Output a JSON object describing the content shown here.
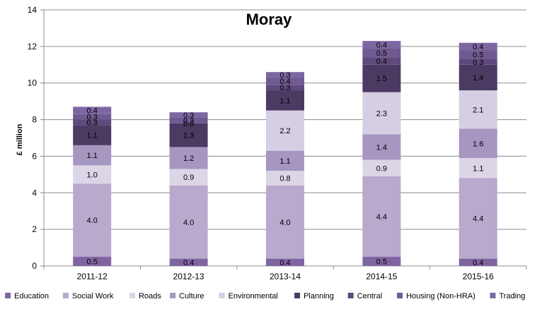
{
  "chart_data": {
    "type": "bar",
    "stacked": true,
    "title": "Moray",
    "xlabel": "",
    "ylabel": "£ million",
    "ylim": [
      0,
      14
    ],
    "yticks": [
      0,
      2,
      4,
      6,
      8,
      10,
      12,
      14
    ],
    "grid": true,
    "legend_position": "bottom",
    "categories": [
      "2011-12",
      "2012-13",
      "2013-14",
      "2014-15",
      "2015-16"
    ],
    "series": [
      {
        "name": "Education",
        "color": "#8064a2",
        "values": [
          0.5,
          0.4,
          0.4,
          0.5,
          0.4
        ],
        "labels": [
          "0.5",
          "0.4",
          "0.4",
          "0.5",
          "0.4"
        ]
      },
      {
        "name": "Social Work",
        "color": "#b7aacd",
        "values": [
          4.0,
          4.0,
          4.0,
          4.4,
          4.4
        ],
        "labels": [
          "4.0",
          "4.0",
          "4.0",
          "4.4",
          "4.4"
        ]
      },
      {
        "name": "Roads",
        "color": "#dcd5e7",
        "values": [
          1.0,
          0.9,
          0.8,
          0.9,
          1.1
        ],
        "labels": [
          "1.0",
          "0.9",
          "0.8",
          "0.9",
          "1.1"
        ]
      },
      {
        "name": "Culture",
        "color": "#a597c0",
        "values": [
          1.1,
          1.2,
          1.1,
          1.4,
          1.6
        ],
        "labels": [
          "1.1",
          "1.2",
          "1.1",
          "1.4",
          "1.6"
        ]
      },
      {
        "name": "Environmental",
        "color": "#d6cee2",
        "values": [
          0.0,
          0.0,
          2.2,
          2.3,
          2.1
        ],
        "labels": [
          "",
          "",
          "2.2",
          "2.3",
          "2.1"
        ]
      },
      {
        "name": "Planning",
        "color": "#4b3b63",
        "values": [
          1.1,
          1.3,
          1.1,
          1.5,
          1.4
        ],
        "labels": [
          "1.1",
          "1.3",
          "1.1",
          "1.5",
          "1.4"
        ]
      },
      {
        "name": "Central",
        "color": "#5e4a7c",
        "values": [
          0.3,
          0.0,
          0.3,
          0.4,
          0.3
        ],
        "labels": [
          "0.3",
          "0.0",
          "0.3",
          "0.4",
          "0.3"
        ]
      },
      {
        "name": "Housing (Non-HRA)",
        "color": "#6f5a91",
        "values": [
          0.3,
          0.3,
          0.4,
          0.5,
          0.5
        ],
        "labels": [
          "0.3",
          "0.3",
          "0.4",
          "0.5",
          "0.5"
        ]
      },
      {
        "name": "Trading",
        "color": "#7d67a3",
        "values": [
          0.4,
          0.3,
          0.3,
          0.4,
          0.4
        ],
        "labels": [
          "0.4",
          "0.3",
          "0.3",
          "0.4",
          "0.4"
        ]
      }
    ]
  }
}
